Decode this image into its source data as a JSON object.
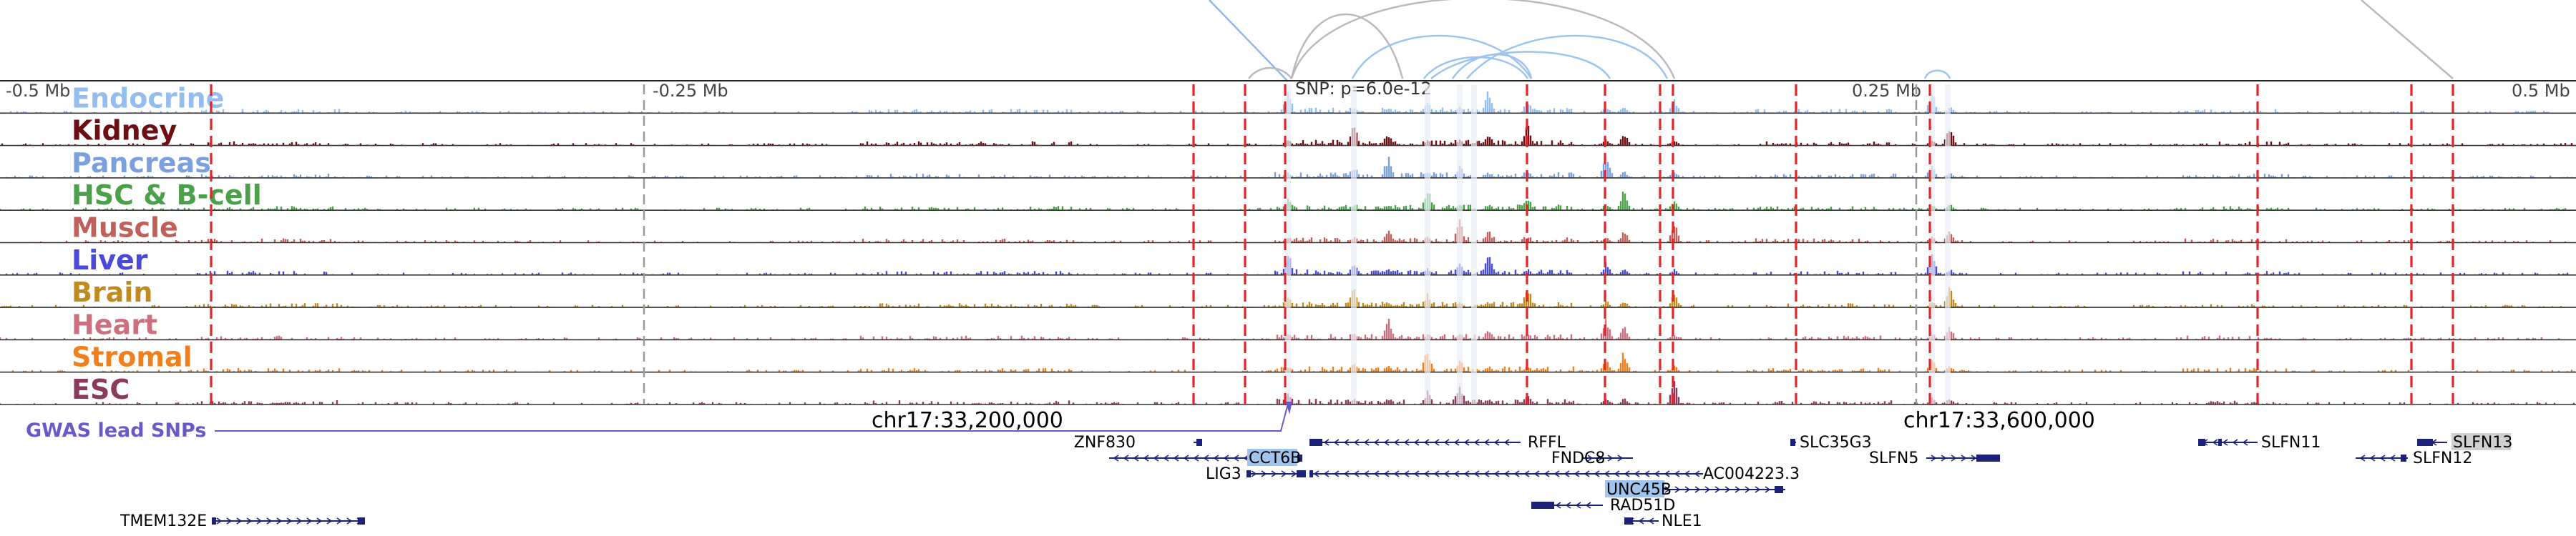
{
  "colors": {
    "ld_line": "#8fb8ef",
    "arc_grey": "#b9b9bf",
    "arc_blue": "#9cc4f0",
    "red_dash": "#e2262a",
    "gene": "#1c2277",
    "gene_highlight_bg": "#9fc4ee",
    "gene_highlight_text": "#ffffff",
    "gene_grey_bg": "#d0d0d0",
    "gwas": "#6a5ac8",
    "axis": "#222222"
  },
  "ruler": {
    "ticks": [
      "-0.5 Mb",
      "-0.25 Mb",
      "0.25 Mb",
      "0.5 Mb"
    ],
    "snp_label": "SNP: p=6.0e-12"
  },
  "tracks": [
    {
      "name": "Endocrine",
      "color": "#94bdf0"
    },
    {
      "name": "Kidney",
      "color": "#6b0f14"
    },
    {
      "name": "Pancreas",
      "color": "#7aa0dd"
    },
    {
      "name": "HSC & B-cell",
      "color": "#4aa14a"
    },
    {
      "name": "Muscle",
      "color": "#c0605a"
    },
    {
      "name": "Liver",
      "color": "#4a4ad8"
    },
    {
      "name": "Brain",
      "color": "#c08a20"
    },
    {
      "name": "Heart",
      "color": "#cc7080"
    },
    {
      "name": "Stromal",
      "color": "#f07f1c"
    },
    {
      "name": "ESC",
      "color": "#8a3a5c"
    }
  ],
  "gwas_label": "GWAS lead SNPs",
  "coordinates": [
    "chr17:33,200,000",
    "chr17:33,600,000"
  ],
  "genes": [
    {
      "name": "ZNF830",
      "style": "plain"
    },
    {
      "name": "RFFL",
      "style": "plain"
    },
    {
      "name": "SLC35G3",
      "style": "plain"
    },
    {
      "name": "SLFN11",
      "style": "plain"
    },
    {
      "name": "SLFN13",
      "style": "grey"
    },
    {
      "name": "CCT6B",
      "style": "highlight"
    },
    {
      "name": "FNDC8",
      "style": "plain"
    },
    {
      "name": "SLFN5",
      "style": "plain"
    },
    {
      "name": "SLFN12",
      "style": "plain"
    },
    {
      "name": "LIG3",
      "style": "plain"
    },
    {
      "name": "AC004223.3",
      "style": "plain"
    },
    {
      "name": "UNC45B",
      "style": "highlight"
    },
    {
      "name": "RAD51D",
      "style": "plain"
    },
    {
      "name": "TMEM132E",
      "style": "plain"
    },
    {
      "name": "NLE1",
      "style": "plain"
    }
  ]
}
